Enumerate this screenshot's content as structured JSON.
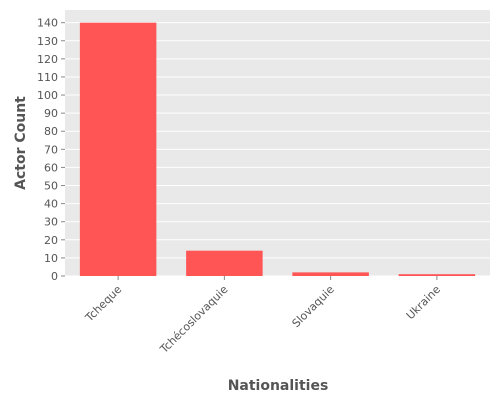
{
  "chart_data": {
    "type": "bar",
    "title": "",
    "xlabel": "Nationalities",
    "ylabel": "Actor Count",
    "categories": [
      "Tcheque",
      "Tchécoslovaquie",
      "Slovaquie",
      "Ukraine"
    ],
    "values": [
      140,
      14,
      2,
      1
    ],
    "ylim": [
      0,
      147
    ],
    "yticks": [
      0,
      10,
      20,
      30,
      40,
      50,
      60,
      70,
      80,
      90,
      100,
      110,
      120,
      130,
      140
    ],
    "grid": true,
    "legend": "none",
    "colors": {
      "bar": "#ff5555",
      "panel": "#e9e9e9",
      "grid": "#ffffff",
      "text": "#555555"
    }
  }
}
